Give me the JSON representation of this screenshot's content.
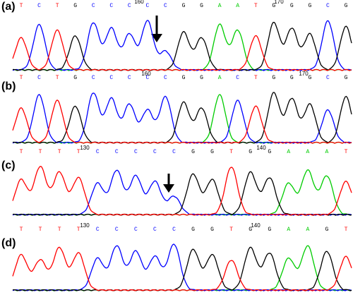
{
  "panels": [
    {
      "label": "(a)",
      "bases": [
        "T",
        "C",
        "T",
        "G",
        "C",
        "C",
        "C",
        "C",
        "C",
        "G",
        "G",
        "A",
        "A",
        "T",
        "G",
        "G",
        "G",
        "C",
        "G"
      ],
      "markers": [
        "160",
        "170"
      ]
    },
    {
      "label": "(b)",
      "bases": [
        "T",
        "C",
        "T",
        "G",
        "C",
        "C",
        "C",
        "C",
        "C",
        "G",
        "G",
        "A",
        "C",
        "T",
        "G",
        "G",
        "G",
        "C",
        "G"
      ],
      "markers": [
        "160",
        "170"
      ]
    },
    {
      "label": "(c)",
      "bases": [
        "T",
        "T",
        "T",
        "T",
        "C",
        "C",
        "C",
        "C",
        "C",
        "G",
        "G",
        "T",
        "G",
        "G",
        "A",
        "A",
        "A",
        "T"
      ],
      "markers": [
        "130",
        "140"
      ]
    },
    {
      "label": "(d)",
      "bases": [
        "T",
        "T",
        "T",
        "T",
        "C",
        "C",
        "C",
        "C",
        "C",
        "G",
        "G",
        "T",
        "G",
        "G",
        "A",
        "A",
        "G",
        "T"
      ],
      "markers": [
        "130",
        "140"
      ]
    }
  ]
}
